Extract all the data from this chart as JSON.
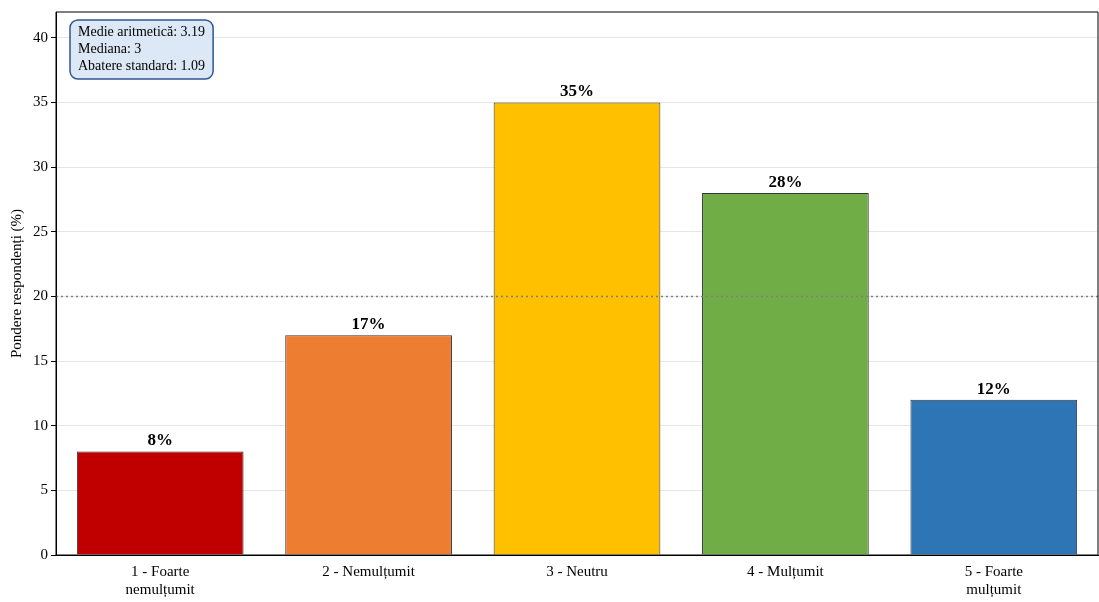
{
  "chart_data": {
    "type": "bar",
    "ylabel": "Pondere respondenți (%)",
    "categories": [
      "1 - Foarte\nnemulțumit",
      "2 - Nemulțumit",
      "3 - Neutru",
      "4 - Mulțumit",
      "5 - Foarte\nmulțumit"
    ],
    "values": [
      8,
      17,
      35,
      28,
      12
    ],
    "colors": [
      "#c00000",
      "#ed7d31",
      "#ffc000",
      "#70ad47",
      "#2e75b6"
    ],
    "value_labels": [
      "8%",
      "17%",
      "35%",
      "28%",
      "12%"
    ],
    "ylim": [
      0,
      42
    ],
    "yticks": [
      0,
      5,
      10,
      15,
      20,
      25,
      30,
      35,
      40
    ],
    "grid": "y",
    "legend": false,
    "ref_lines": [
      {
        "axis": "y",
        "value": 20,
        "color": "#808080",
        "line_style": "dotted"
      }
    ],
    "annotations": [
      "Medie aritmetică: 3.19\nMediana: 3\nAbatere standard: 1.09"
    ]
  }
}
